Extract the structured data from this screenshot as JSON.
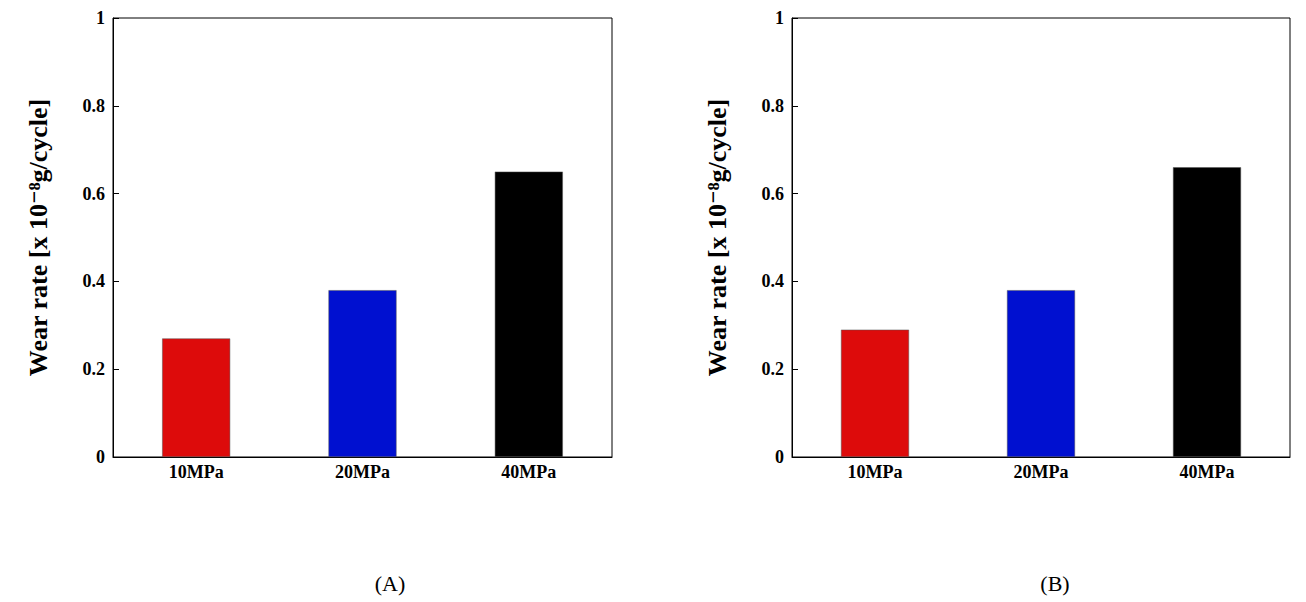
{
  "chart_data": [
    {
      "type": "bar",
      "title": "(A)",
      "ylabel": "Wear rate [x 10⁻⁸g/cycle]",
      "categories": [
        "10MPa",
        "20MPa",
        "40MPa"
      ],
      "values": [
        0.27,
        0.38,
        0.65
      ],
      "colors": [
        "#dd0b0b",
        "#0010d0",
        "#000000"
      ],
      "ylim": [
        0,
        1
      ],
      "yticks": [
        0,
        0.2,
        0.4,
        0.6,
        0.8,
        1
      ],
      "grid": false
    },
    {
      "type": "bar",
      "title": "(B)",
      "ylabel": "Wear rate [x 10⁻⁸g/cycle]",
      "categories": [
        "10MPa",
        "20MPa",
        "40MPa"
      ],
      "values": [
        0.29,
        0.38,
        0.66
      ],
      "colors": [
        "#dd0b0b",
        "#0010d0",
        "#000000"
      ],
      "ylim": [
        0,
        1
      ],
      "yticks": [
        0,
        0.2,
        0.4,
        0.6,
        0.8,
        1
      ],
      "grid": false
    }
  ]
}
